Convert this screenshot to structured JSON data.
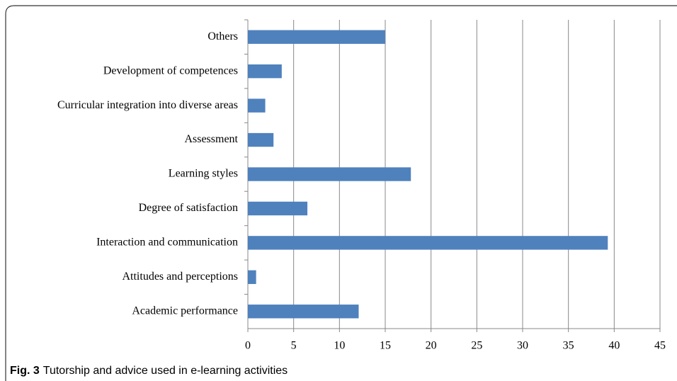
{
  "chart_data": {
    "type": "bar",
    "orientation": "horizontal",
    "caption_label": "Fig. 3",
    "caption": "Tutorship and advice used in e-learning activities",
    "categories": [
      "Others",
      "Development of competences",
      "Curricular integration into diverse areas",
      "Assessment",
      "Learning styles",
      "Degree of satisfaction",
      "Interaction and communication",
      "Attitudes and perceptions",
      "Academic performance"
    ],
    "values": [
      15,
      3.7,
      1.9,
      2.8,
      17.8,
      6.5,
      39.3,
      0.9,
      12.1
    ],
    "color": "#4f81bd",
    "xlim": [
      0,
      45
    ],
    "xticks": [
      0,
      5,
      10,
      15,
      20,
      25,
      30,
      35,
      40,
      45
    ],
    "grid": true
  }
}
